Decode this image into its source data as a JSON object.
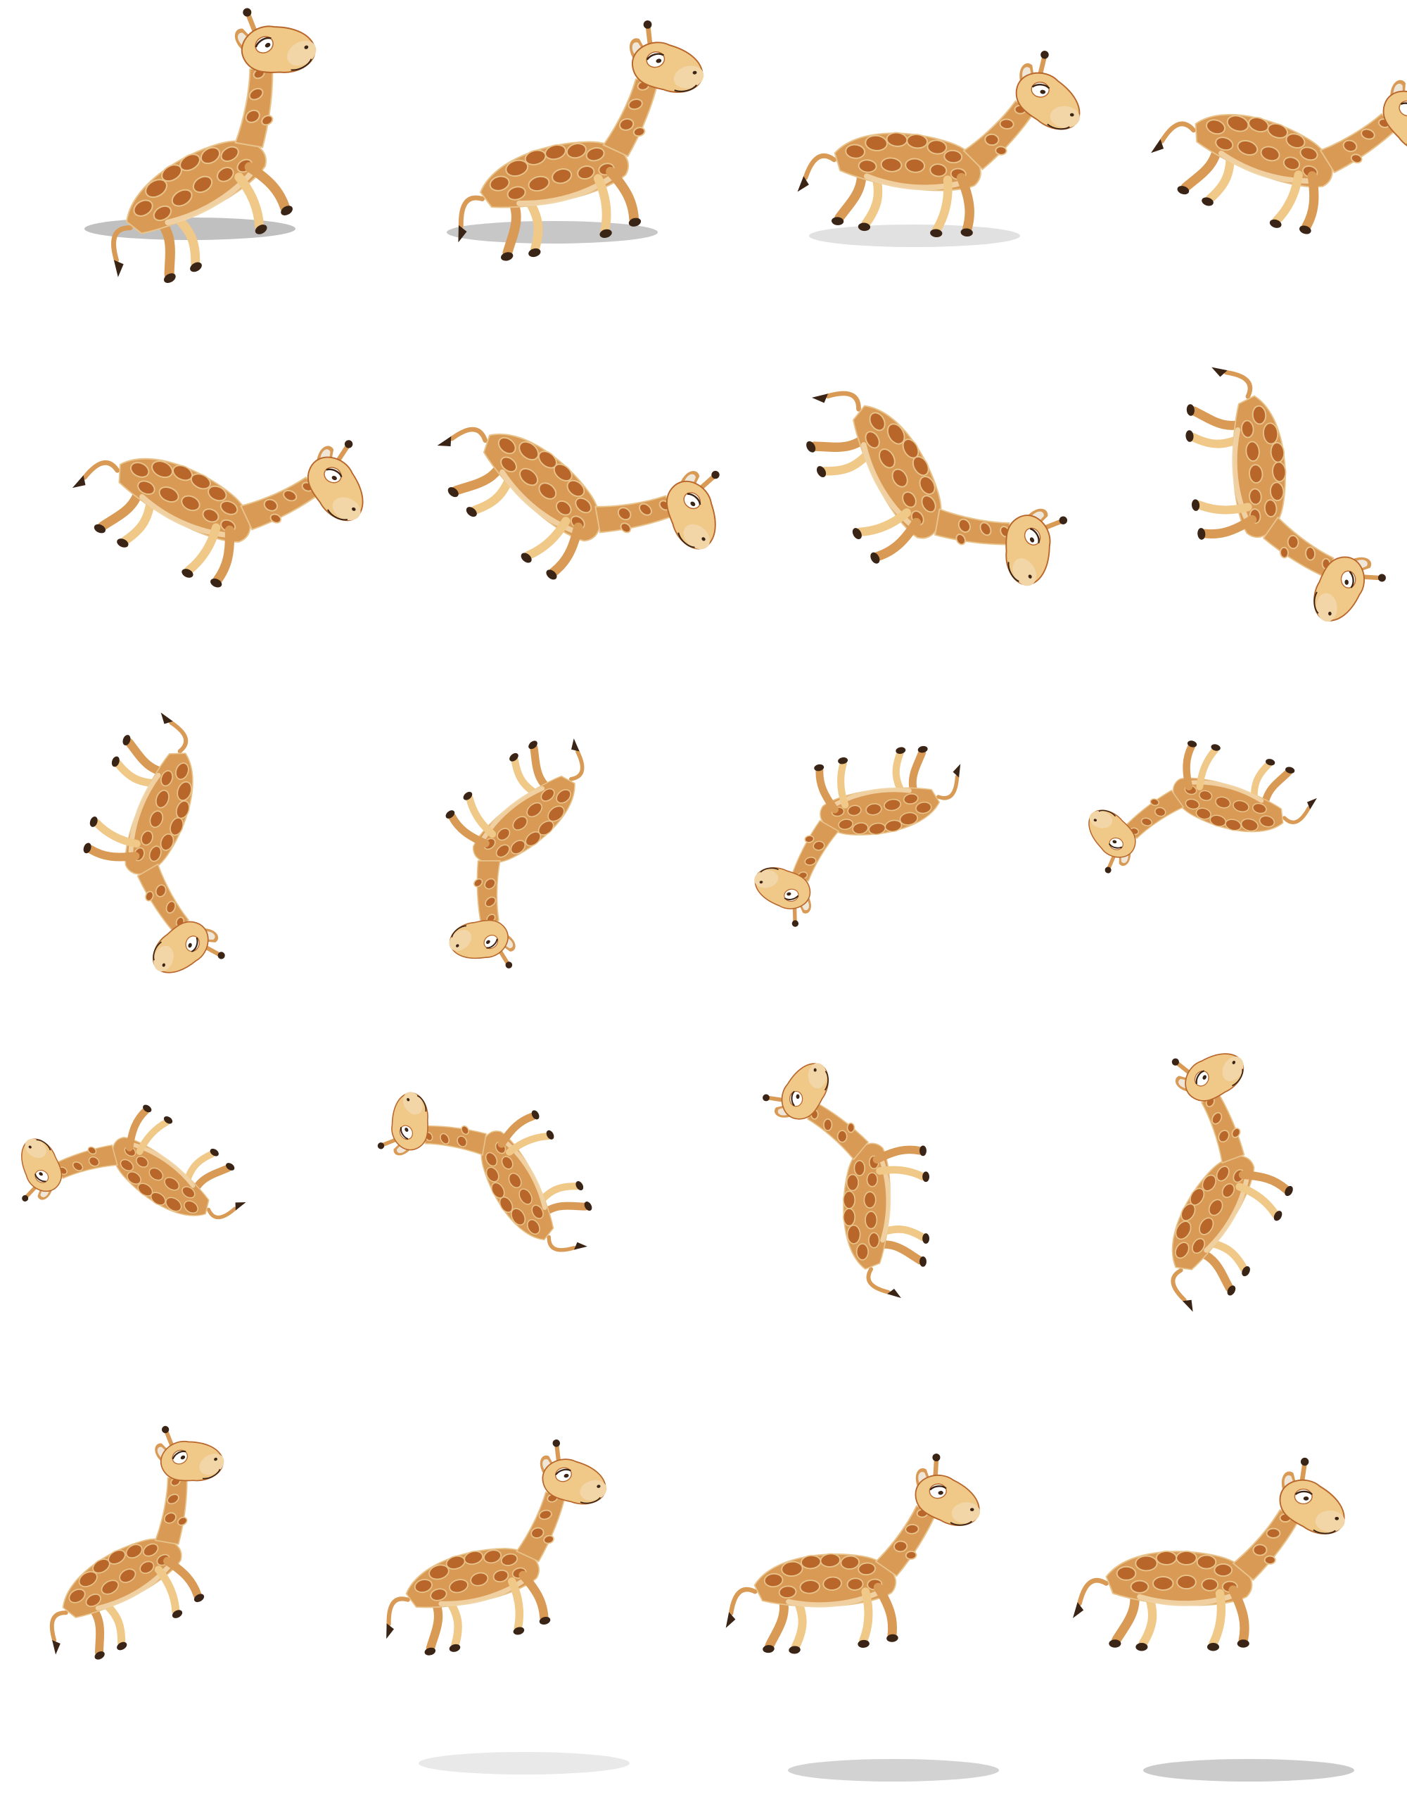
{
  "sheet": {
    "background_color": "#ffffff",
    "columns": 4,
    "rows": 5,
    "colors": {
      "body": "#d99a55",
      "body_light": "#f0c888",
      "spots": "#b8662a",
      "spot_outline": "#e8c48c",
      "dark": "#3a2416",
      "muzzle": "#f2d6a8",
      "ears_inner": "#f0e6d8",
      "shadow": "#777777"
    }
  },
  "frames": [
    {
      "name": "frame-01",
      "shadow": 0.85
    },
    {
      "name": "frame-02",
      "shadow": 0.75
    },
    {
      "name": "frame-03",
      "shadow": 0.4
    },
    {
      "name": "frame-04",
      "shadow": 0
    },
    {
      "name": "frame-05",
      "shadow": 0
    },
    {
      "name": "frame-06",
      "shadow": 0
    },
    {
      "name": "frame-07",
      "shadow": 0
    },
    {
      "name": "frame-08",
      "shadow": 0
    },
    {
      "name": "frame-09",
      "shadow": 0
    },
    {
      "name": "frame-10",
      "shadow": 0
    },
    {
      "name": "frame-11",
      "shadow": 0
    },
    {
      "name": "frame-12",
      "shadow": 0
    },
    {
      "name": "frame-13",
      "shadow": 0
    },
    {
      "name": "frame-14",
      "shadow": 0
    },
    {
      "name": "frame-15",
      "shadow": 0
    },
    {
      "name": "frame-16",
      "shadow": 0
    },
    {
      "name": "frame-17",
      "shadow": 0
    },
    {
      "name": "frame-18",
      "shadow": 0.3
    },
    {
      "name": "frame-19",
      "shadow": 0.6
    },
    {
      "name": "frame-20",
      "shadow": 0.7
    }
  ]
}
